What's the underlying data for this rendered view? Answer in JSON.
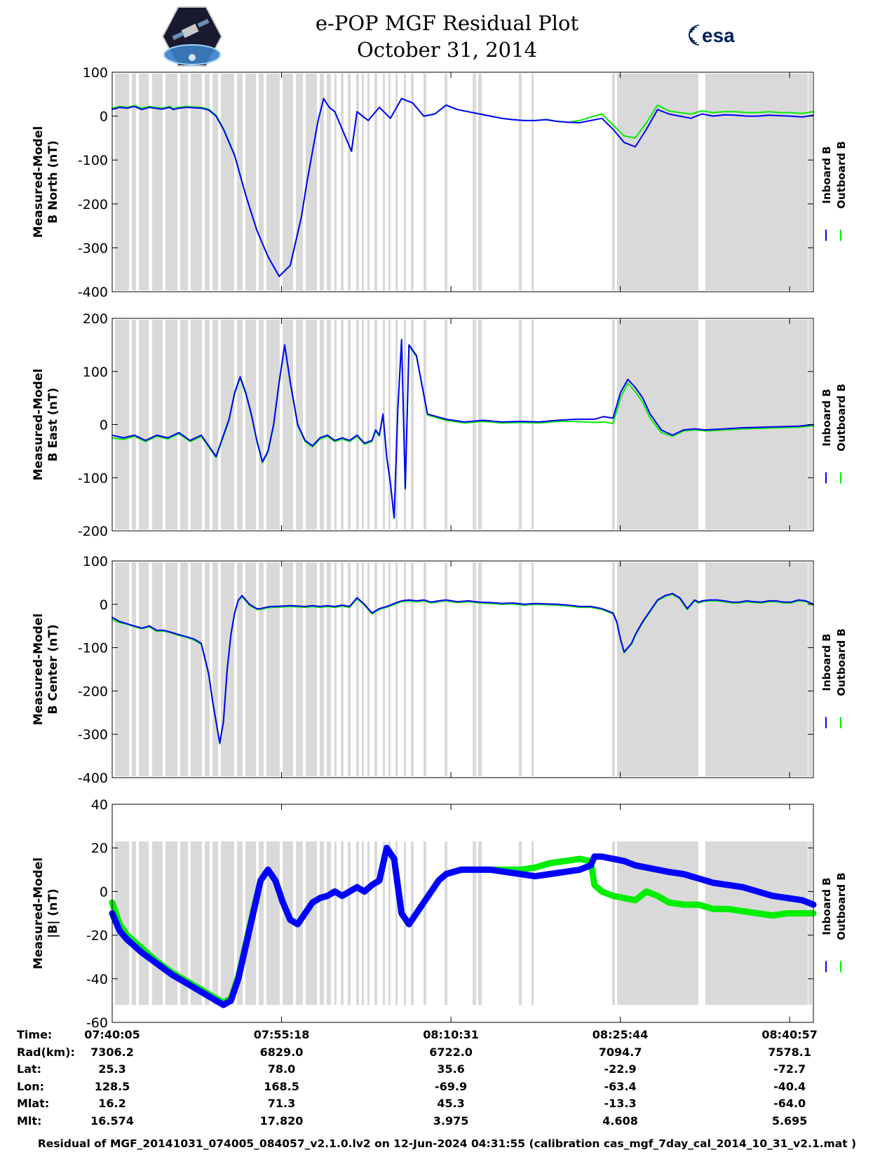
{
  "header": {
    "title_line1": "e-POP MGF Residual Plot",
    "title_line2": "October 31, 2014",
    "left_logo": "cassiope-logo",
    "right_logo_text": "esa"
  },
  "colors": {
    "inboard": "#0000ff",
    "outboard": "#00ee00",
    "shade": "#d9d9d9",
    "axis": "#000000"
  },
  "chart_data": [
    {
      "type": "line",
      "ylabel": "Measured-Model\nB North (nT)",
      "ylim": [
        -400,
        100
      ],
      "yticks": [
        100,
        0,
        -100,
        -200,
        -300,
        -400
      ],
      "legend": [
        "Inboard B",
        "Outboard B"
      ],
      "legend_position": "right",
      "x": [
        0,
        40,
        80,
        120,
        160,
        200,
        230,
        250,
        270,
        290,
        310,
        330,
        360,
        400,
        440,
        480,
        520,
        560,
        600,
        660,
        720,
        780,
        840,
        900,
        960,
        1020,
        1050,
        1080,
        1110,
        1140,
        1170,
        1200,
        1230,
        1260,
        1290,
        1320,
        1380,
        1440,
        1500,
        1560,
        1620,
        1680,
        1740,
        1800,
        1860,
        1920,
        1980,
        2040,
        2100,
        2160,
        2220,
        2280,
        2340,
        2400,
        2460,
        2520,
        2580,
        2640,
        2700,
        2760,
        2820,
        2880,
        2940,
        3000,
        3060,
        3120,
        3180,
        3240,
        3300,
        3360,
        3420,
        3480,
        3540,
        3600,
        3660,
        3720,
        3780
      ],
      "series": [
        {
          "name": "Inboard B",
          "values": [
            15,
            20,
            18,
            22,
            15,
            20,
            18,
            17,
            16,
            18,
            20,
            15,
            18,
            20,
            19,
            18,
            14,
            0,
            -30,
            -90,
            -180,
            -260,
            -320,
            -365,
            -340,
            -230,
            -150,
            -80,
            -10,
            40,
            20,
            10,
            -20,
            -50,
            -80,
            10,
            -10,
            20,
            -5,
            40,
            30,
            0,
            5,
            25,
            15,
            10,
            5,
            0,
            -5,
            -8,
            -10,
            -10,
            -8,
            -12,
            -14,
            -15,
            -10,
            -5,
            -30,
            -60,
            -70,
            -30,
            15,
            5,
            0,
            -5,
            5,
            0,
            3,
            2,
            0,
            0,
            2,
            1,
            0,
            -2,
            2
          ]
        },
        {
          "name": "Outboard B",
          "values": [
            18,
            22,
            20,
            24,
            18,
            22,
            20,
            19,
            18,
            20,
            22,
            17,
            20,
            22,
            21,
            20,
            16,
            2,
            -28,
            -88,
            -180,
            -260,
            -320,
            -365,
            -340,
            -230,
            -150,
            -80,
            -10,
            40,
            20,
            10,
            -20,
            -50,
            -80,
            10,
            -10,
            20,
            -5,
            40,
            30,
            0,
            5,
            25,
            15,
            10,
            5,
            0,
            -5,
            -8,
            -10,
            -10,
            -8,
            -12,
            -14,
            -10,
            -2,
            5,
            -20,
            -45,
            -50,
            -15,
            25,
            12,
            8,
            5,
            12,
            8,
            10,
            10,
            8,
            8,
            10,
            8,
            8,
            6,
            10
          ]
        }
      ]
    },
    {
      "type": "line",
      "ylabel": "Measured-Model\nB East (nT)",
      "ylim": [
        -200,
        200
      ],
      "yticks": [
        200,
        100,
        0,
        -100,
        -200
      ],
      "legend": [
        "Inboard B",
        "Outboard B"
      ],
      "legend_position": "right",
      "x": [
        0,
        60,
        120,
        180,
        240,
        300,
        360,
        420,
        480,
        520,
        560,
        600,
        630,
        660,
        690,
        720,
        750,
        780,
        810,
        840,
        870,
        900,
        930,
        960,
        1000,
        1040,
        1080,
        1120,
        1160,
        1200,
        1240,
        1280,
        1320,
        1360,
        1400,
        1420,
        1440,
        1460,
        1480,
        1500,
        1520,
        1540,
        1560,
        1580,
        1600,
        1640,
        1700,
        1800,
        1900,
        2000,
        2100,
        2200,
        2300,
        2400,
        2500,
        2600,
        2650,
        2700,
        2740,
        2780,
        2820,
        2860,
        2900,
        2960,
        3020,
        3080,
        3140,
        3200,
        3300,
        3400,
        3500,
        3600,
        3700,
        3780
      ],
      "series": [
        {
          "name": "Inboard B",
          "values": [
            -20,
            -25,
            -20,
            -30,
            -20,
            -25,
            -15,
            -30,
            -20,
            -40,
            -60,
            -20,
            10,
            60,
            90,
            60,
            20,
            -30,
            -70,
            -50,
            0,
            80,
            150,
            80,
            0,
            -30,
            -40,
            -25,
            -20,
            -30,
            -25,
            -30,
            -20,
            -35,
            -30,
            -10,
            -20,
            20,
            -60,
            -110,
            -175,
            30,
            160,
            -120,
            150,
            130,
            20,
            10,
            5,
            8,
            5,
            6,
            5,
            8,
            10,
            10,
            15,
            12,
            60,
            85,
            70,
            50,
            20,
            -10,
            -20,
            -10,
            -8,
            -10,
            -8,
            -6,
            -5,
            -4,
            -3,
            0
          ]
        },
        {
          "name": "Outboard B",
          "values": [
            -25,
            -28,
            -22,
            -32,
            -22,
            -27,
            -17,
            -32,
            -22,
            -42,
            -62,
            -22,
            8,
            58,
            88,
            58,
            18,
            -32,
            -72,
            -52,
            -2,
            78,
            148,
            78,
            -2,
            -32,
            -42,
            -27,
            -22,
            -32,
            -27,
            -32,
            -22,
            -37,
            -32,
            -12,
            -22,
            18,
            -62,
            -112,
            -177,
            28,
            158,
            -122,
            148,
            128,
            18,
            8,
            3,
            6,
            3,
            4,
            3,
            6,
            6,
            4,
            5,
            2,
            50,
            78,
            62,
            42,
            12,
            -15,
            -22,
            -12,
            -10,
            -12,
            -10,
            -8,
            -7,
            -6,
            -5,
            -2
          ]
        }
      ]
    },
    {
      "type": "line",
      "ylabel": "Measured-Model\nB Center (nT)",
      "ylim": [
        -400,
        100
      ],
      "yticks": [
        100,
        0,
        -100,
        -200,
        -300,
        -400
      ],
      "legend": [
        "Inboard B",
        "Outboard B"
      ],
      "legend_position": "right",
      "x": [
        0,
        40,
        80,
        120,
        160,
        200,
        240,
        280,
        320,
        360,
        400,
        440,
        480,
        520,
        540,
        560,
        580,
        600,
        620,
        640,
        660,
        680,
        700,
        740,
        780,
        800,
        820,
        840,
        860,
        880,
        920,
        960,
        1000,
        1040,
        1080,
        1120,
        1160,
        1200,
        1240,
        1280,
        1320,
        1360,
        1400,
        1440,
        1480,
        1540,
        1560,
        1600,
        1640,
        1680,
        1720,
        1760,
        1800,
        1860,
        1920,
        1980,
        2040,
        2100,
        2160,
        2220,
        2280,
        2340,
        2400,
        2460,
        2520,
        2580,
        2640,
        2700,
        2720,
        2740,
        2760,
        2780,
        2800,
        2820,
        2860,
        2900,
        2940,
        2980,
        3020,
        3060,
        3100,
        3140,
        3160,
        3180,
        3220,
        3260,
        3300,
        3340,
        3380,
        3420,
        3460,
        3500,
        3540,
        3580,
        3620,
        3660,
        3700,
        3740,
        3780
      ],
      "series": [
        {
          "name": "Inboard B",
          "values": [
            -30,
            -40,
            -45,
            -50,
            -55,
            -50,
            -60,
            -60,
            -65,
            -70,
            -75,
            -80,
            -90,
            -160,
            -220,
            -270,
            -320,
            -270,
            -150,
            -70,
            -20,
            10,
            20,
            0,
            -10,
            -10,
            -8,
            -6,
            -5,
            -5,
            -4,
            -3,
            -4,
            -5,
            -3,
            -5,
            -3,
            -5,
            -2,
            -5,
            15,
            0,
            -20,
            -10,
            -5,
            5,
            8,
            10,
            8,
            10,
            5,
            8,
            10,
            6,
            8,
            5,
            4,
            2,
            3,
            0,
            2,
            1,
            0,
            -2,
            -5,
            -5,
            -10,
            -20,
            -40,
            -80,
            -110,
            -100,
            -90,
            -70,
            -40,
            -15,
            10,
            20,
            25,
            15,
            -10,
            10,
            5,
            8,
            10,
            10,
            8,
            5,
            5,
            8,
            6,
            5,
            8,
            8,
            5,
            5,
            10,
            8,
            0
          ]
        },
        {
          "name": "Outboard B",
          "values": [
            -35,
            -42,
            -46,
            -52,
            -56,
            -52,
            -62,
            -62,
            -66,
            -72,
            -76,
            -82,
            -92,
            -162,
            -222,
            -272,
            -322,
            -272,
            -152,
            -72,
            -22,
            8,
            18,
            -2,
            -12,
            -12,
            -10,
            -8,
            -7,
            -7,
            -6,
            -5,
            -6,
            -7,
            -5,
            -7,
            -5,
            -7,
            -4,
            -7,
            13,
            -2,
            -22,
            -12,
            -7,
            3,
            6,
            8,
            6,
            8,
            3,
            6,
            8,
            4,
            6,
            3,
            2,
            0,
            1,
            -2,
            0,
            -1,
            -2,
            -4,
            -7,
            -7,
            -12,
            -22,
            -42,
            -82,
            -112,
            -102,
            -92,
            -72,
            -42,
            -17,
            8,
            18,
            23,
            13,
            -12,
            8,
            3,
            6,
            8,
            8,
            6,
            3,
            3,
            6,
            4,
            3,
            6,
            6,
            3,
            3,
            8,
            6,
            -2
          ]
        }
      ]
    },
    {
      "type": "line",
      "ylabel": "Measured-Model\n|B| (nT)",
      "ylim": [
        -60,
        40
      ],
      "yticks": [
        40,
        20,
        0,
        -20,
        -40,
        -60
      ],
      "legend": [
        "Inboard B",
        "Outboard B"
      ],
      "legend_position": "right",
      "x": [
        0,
        40,
        80,
        160,
        240,
        320,
        400,
        480,
        560,
        600,
        640,
        680,
        720,
        760,
        800,
        840,
        880,
        920,
        960,
        1000,
        1040,
        1080,
        1120,
        1160,
        1200,
        1240,
        1280,
        1320,
        1360,
        1400,
        1440,
        1480,
        1520,
        1560,
        1600,
        1640,
        1680,
        1720,
        1760,
        1800,
        1880,
        1960,
        2040,
        2120,
        2200,
        2280,
        2360,
        2440,
        2520,
        2580,
        2600,
        2640,
        2700,
        2760,
        2820,
        2880,
        2940,
        3000,
        3080,
        3160,
        3240,
        3320,
        3400,
        3480,
        3560,
        3640,
        3720,
        3780
      ],
      "series": [
        {
          "name": "Inboard B",
          "values": [
            -10,
            -18,
            -22,
            -28,
            -33,
            -38,
            -42,
            -46,
            -50,
            -52,
            -50,
            -40,
            -25,
            -10,
            5,
            10,
            5,
            -5,
            -13,
            -15,
            -10,
            -5,
            -3,
            -2,
            0,
            -2,
            0,
            2,
            0,
            3,
            5,
            20,
            15,
            -10,
            -15,
            -10,
            -5,
            0,
            5,
            8,
            10,
            10,
            10,
            9,
            8,
            7,
            8,
            9,
            10,
            12,
            16,
            16,
            15,
            14,
            12,
            11,
            10,
            9,
            8,
            6,
            4,
            3,
            2,
            0,
            -2,
            -3,
            -4,
            -6
          ]
        },
        {
          "name": "Outboard B",
          "values": [
            -5,
            -15,
            -20,
            -26,
            -32,
            -37,
            -41,
            -45,
            -49,
            -51,
            -49,
            -39,
            -24,
            -9,
            5,
            10,
            5,
            -5,
            -13,
            -15,
            -10,
            -5,
            -3,
            -2,
            0,
            -2,
            0,
            2,
            0,
            3,
            5,
            20,
            15,
            -10,
            -15,
            -10,
            -5,
            0,
            5,
            8,
            10,
            10,
            10,
            10,
            10,
            11,
            13,
            14,
            15,
            14,
            3,
            0,
            -2,
            -3,
            -4,
            0,
            -2,
            -5,
            -6,
            -6,
            -8,
            -8,
            -9,
            -10,
            -11,
            -10,
            -10,
            -10
          ]
        }
      ]
    }
  ],
  "x_axis": {
    "xlim": [
      0,
      3780
    ],
    "tick_positions": [
      0,
      913,
      1826,
      2739,
      3652
    ],
    "rows": [
      {
        "key": "Time:",
        "values": [
          "07:40:05",
          "07:55:18",
          "08:10:31",
          "08:25:44",
          "08:40:57"
        ]
      },
      {
        "key": "Rad(km):",
        "values": [
          "7306.2",
          "6829.0",
          "6722.0",
          "7094.7",
          "7578.1"
        ]
      },
      {
        "key": "Lat:",
        "values": [
          "25.3",
          "78.0",
          "35.6",
          "-22.9",
          "-72.7"
        ]
      },
      {
        "key": "Lon:",
        "values": [
          "128.5",
          "168.5",
          "-69.9",
          "-63.4",
          "-40.4"
        ]
      },
      {
        "key": "Mlat:",
        "values": [
          "16.2",
          "71.3",
          "45.3",
          "-13.3",
          "-64.0"
        ]
      },
      {
        "key": "Mlt:",
        "values": [
          "16.574",
          "17.820",
          "3.975",
          "4.608",
          "5.695"
        ]
      }
    ]
  },
  "footer": "Residual of MGF_20141031_074005_084057_v2.1.0.lv2 on 12-Jun-2024 04:31:55 (calibration cas_mgf_7day_cal_2014_10_31_v2.1.mat )"
}
